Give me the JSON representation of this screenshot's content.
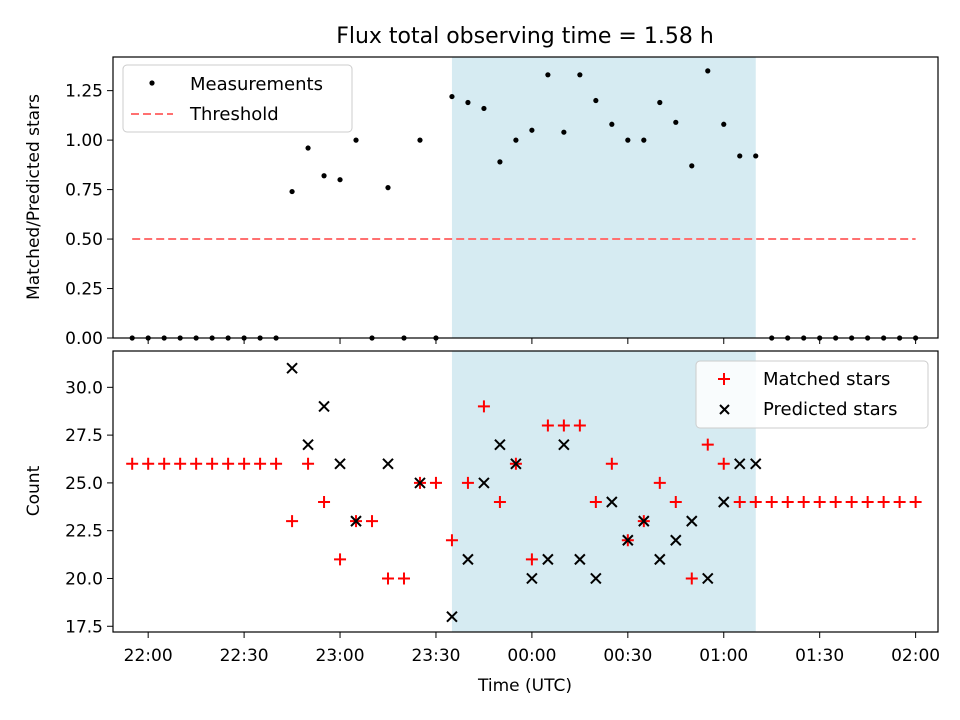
{
  "figure": {
    "title": "Flux total observing time = 1.58 h"
  },
  "chart_data": [
    {
      "type": "scatter",
      "title": "Flux total observing time = 1.58 h",
      "xlabel": "",
      "ylabel": "Matched/Predicted stars",
      "xlim": [
        "21:49",
        "02:07"
      ],
      "ylim": [
        0.0,
        1.42
      ],
      "yticks": [
        0.0,
        0.25,
        0.5,
        0.75,
        1.0,
        1.25
      ],
      "ytick_labels": [
        "0.00",
        "0.25",
        "0.50",
        "0.75",
        "1.00",
        "1.25"
      ],
      "grid": false,
      "legend_position": "top-left",
      "shaded_interval": {
        "start": "23:35",
        "end": "01:10",
        "color": "#add8e6"
      },
      "series": [
        {
          "name": "Measurements",
          "marker": "dot",
          "color": "#000000",
          "x": [
            "21:55",
            "22:00",
            "22:05",
            "22:10",
            "22:15",
            "22:20",
            "22:25",
            "22:30",
            "22:35",
            "22:40",
            "22:45",
            "22:50",
            "22:55",
            "23:00",
            "23:05",
            "23:10",
            "23:15",
            "23:20",
            "23:25",
            "23:30",
            "23:35",
            "23:40",
            "23:45",
            "23:50",
            "23:55",
            "00:00",
            "00:05",
            "00:10",
            "00:15",
            "00:20",
            "00:25",
            "00:30",
            "00:35",
            "00:40",
            "00:45",
            "00:50",
            "00:55",
            "01:00",
            "01:05",
            "01:10",
            "01:15",
            "01:20",
            "01:25",
            "01:30",
            "01:35",
            "01:40",
            "01:45",
            "01:50",
            "01:55",
            "02:00"
          ],
          "y": [
            0,
            0,
            0,
            0,
            0,
            0,
            0,
            0,
            0,
            0,
            0.74,
            0.96,
            0.82,
            0.8,
            1.0,
            0,
            0.76,
            0,
            1.0,
            0,
            1.22,
            1.19,
            1.16,
            0.89,
            1.0,
            1.05,
            1.33,
            1.04,
            1.33,
            1.2,
            1.08,
            1.0,
            1.0,
            1.19,
            1.09,
            0.87,
            1.35,
            1.08,
            0.92,
            0.92,
            0,
            0,
            0,
            0,
            0,
            0,
            0,
            0,
            0,
            0
          ]
        },
        {
          "name": "Threshold",
          "line_style": "dashed",
          "color": "#ff7070",
          "x": [
            "21:55",
            "02:00"
          ],
          "y": [
            0.5,
            0.5
          ]
        }
      ]
    },
    {
      "type": "scatter",
      "title": "",
      "xlabel": "Time (UTC)",
      "ylabel": "Count",
      "xlim": [
        "21:49",
        "02:07"
      ],
      "ylim": [
        17.2,
        31.9
      ],
      "yticks": [
        17.5,
        20.0,
        22.5,
        25.0,
        27.5,
        30.0
      ],
      "ytick_labels": [
        "17.5",
        "20.0",
        "22.5",
        "25.0",
        "27.5",
        "30.0"
      ],
      "xticks": [
        "22:00",
        "22:30",
        "23:00",
        "23:30",
        "00:00",
        "00:30",
        "01:00",
        "01:30",
        "02:00"
      ],
      "grid": false,
      "legend_position": "top-right",
      "shaded_interval": {
        "start": "23:35",
        "end": "01:10",
        "color": "#add8e6"
      },
      "series": [
        {
          "name": "Matched stars",
          "marker": "plus",
          "color": "#ff0000",
          "x": [
            "21:55",
            "22:00",
            "22:05",
            "22:10",
            "22:15",
            "22:20",
            "22:25",
            "22:30",
            "22:35",
            "22:40",
            "22:45",
            "22:50",
            "22:55",
            "23:00",
            "23:05",
            "23:10",
            "23:15",
            "23:20",
            "23:25",
            "23:30",
            "23:35",
            "23:40",
            "23:45",
            "23:50",
            "23:55",
            "00:00",
            "00:05",
            "00:10",
            "00:15",
            "00:20",
            "00:25",
            "00:30",
            "00:35",
            "00:40",
            "00:45",
            "00:50",
            "00:55",
            "01:00",
            "01:05",
            "01:10",
            "01:15",
            "01:20",
            "01:25",
            "01:30",
            "01:35",
            "01:40",
            "01:45",
            "01:50",
            "01:55",
            "02:00"
          ],
          "y": [
            26,
            26,
            26,
            26,
            26,
            26,
            26,
            26,
            26,
            26,
            23,
            26,
            24,
            21,
            23,
            23,
            20,
            20,
            25,
            25,
            22,
            25,
            29,
            24,
            26,
            21,
            28,
            28,
            28,
            24,
            26,
            22,
            23,
            25,
            24,
            20,
            27,
            26,
            24,
            24,
            24,
            24,
            24,
            24,
            24,
            24,
            24,
            24,
            24,
            24
          ]
        },
        {
          "name": "Predicted stars",
          "marker": "x",
          "color": "#000000",
          "x": [
            "22:45",
            "22:50",
            "22:55",
            "23:00",
            "23:05",
            "23:15",
            "23:25",
            "23:35",
            "23:40",
            "23:45",
            "23:50",
            "23:55",
            "00:00",
            "00:05",
            "00:10",
            "00:15",
            "00:20",
            "00:25",
            "00:30",
            "00:35",
            "00:40",
            "00:45",
            "00:50",
            "00:55",
            "01:00",
            "01:05",
            "01:10"
          ],
          "y": [
            31,
            27,
            29,
            26,
            23,
            26,
            25,
            18,
            21,
            25,
            27,
            26,
            20,
            21,
            27,
            21,
            20,
            24,
            22,
            23,
            21,
            22,
            23,
            20,
            24,
            26,
            26
          ]
        }
      ]
    }
  ]
}
